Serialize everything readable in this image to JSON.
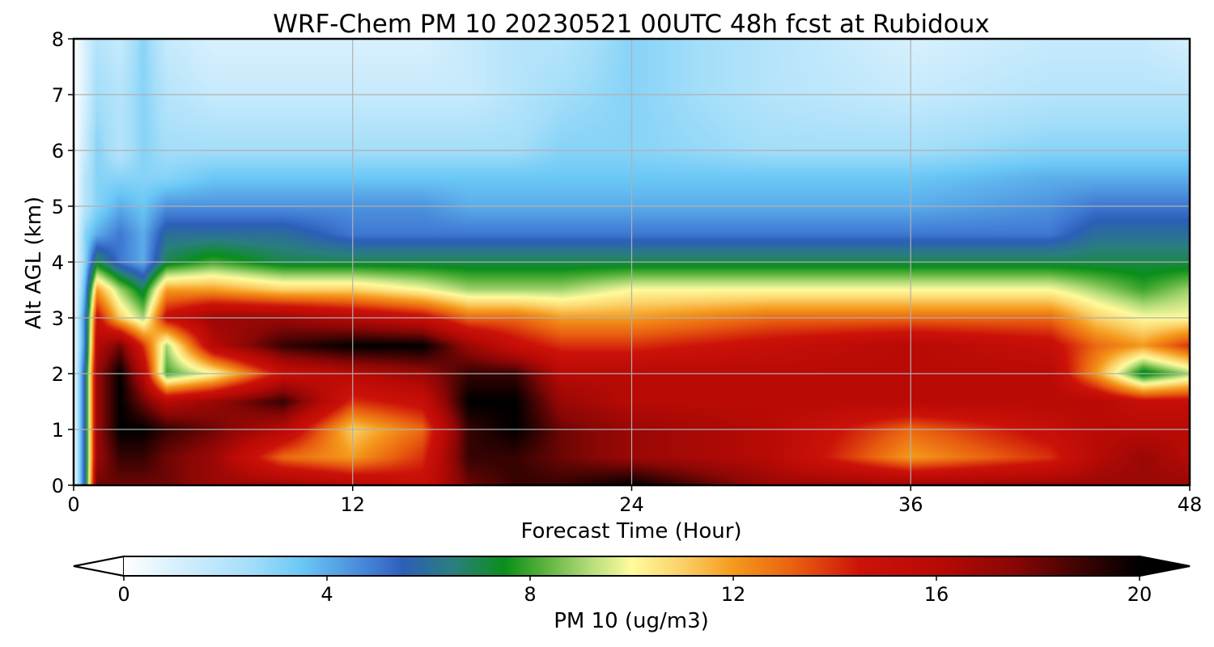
{
  "chart_data": {
    "type": "heatmap",
    "title": "WRF-Chem PM 10  20230521 00UTC 48h fcst at Rubidoux",
    "xlabel": "Forecast Time (Hour)",
    "ylabel": "Alt AGL (km)",
    "xlim": [
      0,
      48
    ],
    "ylim": [
      0,
      8
    ],
    "xticks": [
      0,
      12,
      24,
      36,
      48
    ],
    "yticks": [
      0,
      1,
      2,
      3,
      4,
      5,
      6,
      7,
      8
    ],
    "grid": true,
    "colorbar": {
      "label": "PM 10  (ug/m3)",
      "orientation": "horizontal",
      "position": "bottom",
      "range": [
        0,
        20
      ],
      "ticks": [
        0,
        4,
        8,
        12,
        16,
        20
      ],
      "extend": "both",
      "color_stops": [
        {
          "value": 0,
          "color": "#ffffff"
        },
        {
          "value": 1,
          "color": "#d8f0fd"
        },
        {
          "value": 2.5,
          "color": "#a4def9"
        },
        {
          "value": 3.5,
          "color": "#6ac8f6"
        },
        {
          "value": 5,
          "color": "#3f78d2"
        },
        {
          "value": 5.5,
          "color": "#2c5fb8"
        },
        {
          "value": 6.5,
          "color": "#2a7f7d"
        },
        {
          "value": 7.5,
          "color": "#0a8f1a"
        },
        {
          "value": 8.3,
          "color": "#5cb33e"
        },
        {
          "value": 9.2,
          "color": "#b7dd7c"
        },
        {
          "value": 10,
          "color": "#fffb9c"
        },
        {
          "value": 11,
          "color": "#fbd068"
        },
        {
          "value": 12,
          "color": "#f59a1c"
        },
        {
          "value": 13.2,
          "color": "#e95f10"
        },
        {
          "value": 14.5,
          "color": "#cc1209"
        },
        {
          "value": 16,
          "color": "#b90a05"
        },
        {
          "value": 17.5,
          "color": "#8a0705"
        },
        {
          "value": 19,
          "color": "#350302"
        },
        {
          "value": 20,
          "color": "#000000"
        }
      ]
    },
    "times_hour": [
      0,
      0.5,
      1,
      2,
      3,
      4,
      6,
      9,
      12,
      15,
      17,
      19,
      21,
      24,
      30,
      36,
      42,
      44,
      46,
      48
    ],
    "altitudes_km": [
      0,
      0.5,
      1,
      1.5,
      2,
      2.5,
      3,
      3.5,
      4,
      4.5,
      5,
      5.5,
      6,
      7,
      8
    ],
    "pm10_values": [
      [
        0,
        6,
        18,
        18,
        18,
        18,
        17,
        17,
        16,
        15,
        18,
        19,
        19,
        20,
        17,
        17,
        17,
        17,
        17,
        17
      ],
      [
        0,
        6,
        17,
        19,
        19,
        18,
        17,
        13,
        12,
        14,
        19,
        19,
        18,
        17,
        16,
        12,
        14,
        16,
        17,
        16
      ],
      [
        0,
        6,
        17,
        20,
        20,
        19,
        18,
        16,
        11,
        13,
        19,
        20,
        18,
        17,
        16,
        13,
        15,
        16,
        16,
        16
      ],
      [
        0,
        6,
        17,
        20,
        18,
        16,
        17,
        19,
        14,
        15,
        20,
        20,
        17,
        16,
        16,
        16,
        16,
        16,
        15,
        15
      ],
      [
        0,
        6,
        17,
        20,
        16,
        8,
        10,
        15,
        16,
        17,
        19,
        19,
        16,
        16,
        16,
        16,
        16,
        12,
        7,
        9
      ],
      [
        0,
        5,
        16,
        18,
        14,
        9,
        16,
        19,
        20,
        20,
        17,
        15,
        14,
        14,
        15,
        16,
        15,
        13,
        12,
        14
      ],
      [
        0,
        5,
        15,
        11,
        9,
        15,
        17,
        17,
        16,
        15,
        13,
        13,
        12,
        12,
        13,
        13,
        13,
        11,
        10,
        10
      ],
      [
        0,
        4,
        12,
        9,
        7,
        12,
        12,
        11,
        11,
        10,
        9,
        9,
        9,
        10,
        10,
        10,
        10,
        9,
        8,
        9
      ],
      [
        0,
        3,
        7,
        5,
        4,
        7,
        8,
        7,
        7,
        7,
        7,
        7,
        7,
        7,
        7,
        7,
        7,
        7,
        7,
        7
      ],
      [
        0,
        3,
        4,
        5,
        4,
        6,
        6,
        6,
        5,
        5,
        5,
        5,
        5,
        5,
        5,
        5,
        5,
        6,
        6,
        6
      ],
      [
        0,
        2,
        3,
        4,
        3.5,
        4.5,
        4.5,
        4.5,
        4.5,
        4.5,
        4,
        4,
        4,
        4,
        4,
        4,
        4.5,
        5,
        5,
        5
      ],
      [
        0,
        2,
        3,
        3,
        3,
        3,
        3.5,
        3.5,
        3.5,
        3.5,
        3.5,
        3.5,
        3.5,
        3.5,
        3.5,
        3.5,
        4,
        4,
        4,
        4
      ],
      [
        0,
        1.5,
        3,
        2,
        3,
        2.5,
        2.5,
        2.5,
        2.5,
        2.5,
        2.5,
        2.5,
        3,
        3,
        2.5,
        2.5,
        3,
        3,
        3,
        3
      ],
      [
        0,
        1,
        2.5,
        2,
        3,
        2,
        1.5,
        1.5,
        1.5,
        1.5,
        1.5,
        2,
        2.5,
        3,
        2,
        1.5,
        2,
        2,
        2,
        2
      ],
      [
        0,
        1,
        2,
        1.5,
        3,
        1.5,
        1,
        1,
        1,
        1,
        1.5,
        2,
        2,
        3,
        2,
        1,
        1.5,
        1.5,
        1.5,
        1
      ]
    ]
  }
}
